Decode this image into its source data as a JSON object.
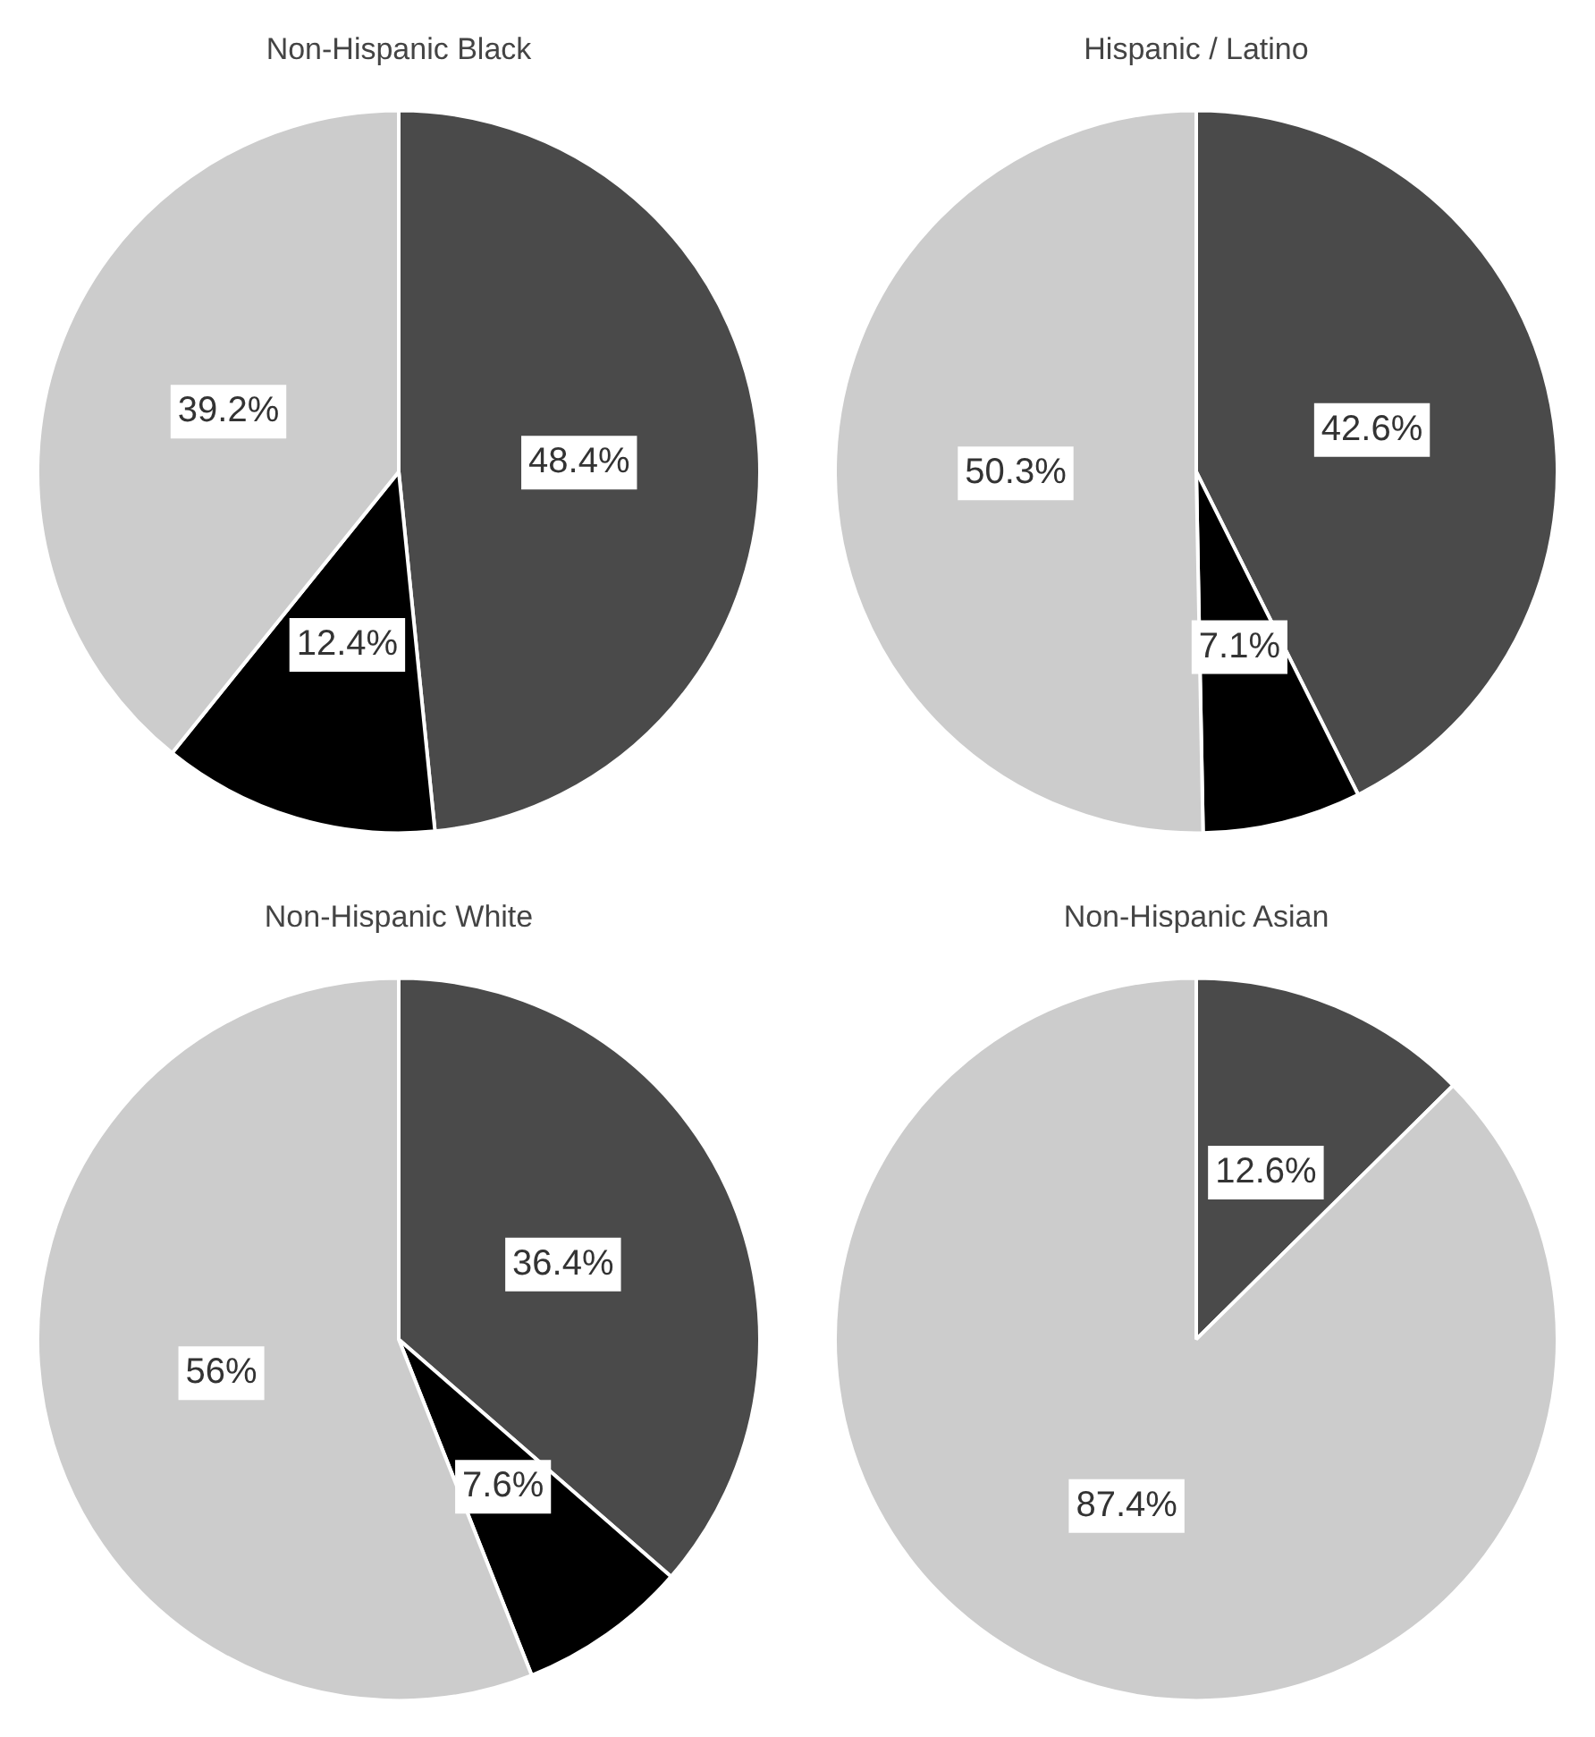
{
  "chart_data": [
    {
      "type": "pie",
      "title": "Non-Hispanic Black",
      "categories": [
        null,
        null,
        null
      ],
      "values": [
        48.4,
        12.4,
        39.2
      ],
      "colors": [
        "#4a4a4a",
        "#000000",
        "#cccccc"
      ],
      "value_labels": [
        "48.4%",
        "12.4%",
        "39.2%"
      ]
    },
    {
      "type": "pie",
      "title": "Hispanic / Latino",
      "categories": [
        null,
        null,
        null
      ],
      "values": [
        42.6,
        7.1,
        50.3
      ],
      "colors": [
        "#4a4a4a",
        "#000000",
        "#cccccc"
      ],
      "value_labels": [
        "42.6%",
        "7.1%",
        "50.3%"
      ]
    },
    {
      "type": "pie",
      "title": "Non-Hispanic White",
      "categories": [
        null,
        null,
        null
      ],
      "values": [
        36.4,
        7.6,
        56
      ],
      "colors": [
        "#4a4a4a",
        "#000000",
        "#cccccc"
      ],
      "value_labels": [
        "36.4%",
        "7.6%",
        "56%"
      ]
    },
    {
      "type": "pie",
      "title": "Non-Hispanic Asian",
      "categories": [
        null,
        null
      ],
      "values": [
        12.6,
        87.4
      ],
      "colors": [
        "#4a4a4a",
        "#cccccc"
      ],
      "value_labels": [
        "12.6%",
        "87.4%"
      ]
    }
  ]
}
